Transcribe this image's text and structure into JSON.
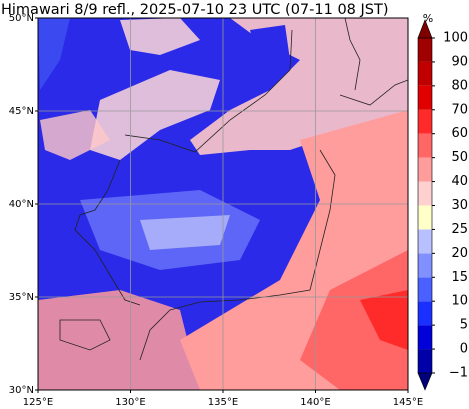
{
  "title": "Himawari 8/9 refl., 2025-07-10 23 UTC (07-11 08 JST)",
  "map": {
    "lonlim": [
      125,
      145
    ],
    "latlim": [
      30,
      50
    ],
    "lon_ticks": [
      {
        "value": 125,
        "label": "125°E"
      },
      {
        "value": 130,
        "label": "130°E"
      },
      {
        "value": 135,
        "label": "135°E"
      },
      {
        "value": 140,
        "label": "140°E"
      },
      {
        "value": 145,
        "label": "145°E"
      }
    ],
    "lat_ticks": [
      {
        "value": 30,
        "label": "30°N"
      },
      {
        "value": 35,
        "label": "35°N"
      },
      {
        "value": 40,
        "label": "40°N"
      },
      {
        "value": 45,
        "label": "45°N"
      },
      {
        "value": 50,
        "label": "50°N"
      }
    ],
    "grid": true
  },
  "colorbar": {
    "unit": "%",
    "levels": [
      {
        "value": -1,
        "label": "−1"
      },
      0,
      5,
      10,
      15,
      20,
      25,
      30,
      40,
      50,
      60,
      70,
      80,
      90,
      100
    ],
    "colors": [
      "#00007a",
      "#0000a8",
      "#0000d8",
      "#1a30ff",
      "#4a60ff",
      "#8090ff",
      "#b8c0ff",
      "#ffffc8",
      "#ffd0d0",
      "#ff9c9c",
      "#ff6666",
      "#ff2a2a",
      "#e00000",
      "#c00000",
      "#a00000",
      "#800000"
    ]
  }
}
